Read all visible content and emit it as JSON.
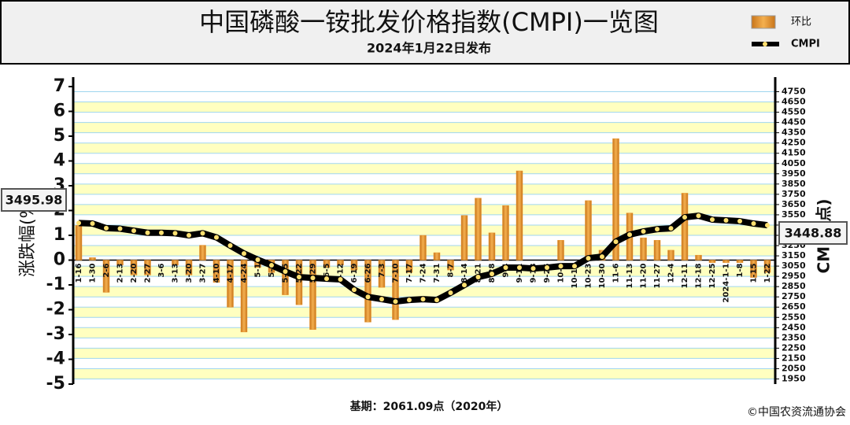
{
  "chart_data": {
    "type": "bar_line",
    "title": "中国磷酸一铵批发价格指数(CMPI)一览图",
    "subtitle": "2024年1月22日发布",
    "y_label": "涨跌幅(%)",
    "y2_label": "CMPI(点)",
    "footnote": "基期：2061.09点（2020年）",
    "credit": "©中国农资流通协会",
    "annotations": [
      "3495.98",
      "3448.88"
    ],
    "categories": [
      "1-16",
      "1-30",
      "2-6",
      "2-13",
      "2-20",
      "2-27",
      "3-6",
      "3-13",
      "3-20",
      "3-27",
      "4-10",
      "4-17",
      "4-24",
      "5-1",
      "5-8",
      "5-15",
      "5-22",
      "5-29",
      "6-5",
      "6-12",
      "6-19",
      "6-26",
      "7-3",
      "7-10",
      "7-17",
      "7-24",
      "7-31",
      "8-7",
      "8-14",
      "8-21",
      "8-28",
      "9-4",
      "9-11",
      "9-18",
      "9-25",
      "10-9",
      "10-16",
      "10-23",
      "10-30",
      "11-6",
      "11-13",
      "11-20",
      "11-27",
      "12-4",
      "12-11",
      "12-18",
      "12-25",
      "2024-1-1",
      "1-8",
      "1-15",
      "1-22"
    ],
    "series": [
      {
        "name": "环比",
        "color": "#e8932a",
        "values": [
          1.4,
          0.1,
          -1.3,
          -0.2,
          -0.6,
          -0.6,
          0,
          -0.2,
          -0.6,
          0.6,
          -0.9,
          -1.9,
          -2.9,
          -0.3,
          -0.5,
          -1.4,
          -1.8,
          -2.8,
          -0.3,
          -0.2,
          -0.4,
          -2.5,
          -1.1,
          -2.4,
          -0.5,
          1.0,
          0.3,
          -0.4,
          1.8,
          2.5,
          1.1,
          2.2,
          3.6,
          0,
          0,
          0.8,
          0,
          2.4,
          0.4,
          4.9,
          1.9,
          0.9,
          0.8,
          0.4,
          2.7,
          0.2,
          -0.1,
          -0.1,
          -0.1,
          -0.7,
          -0.5
        ]
      },
      {
        "name": "CMPI",
        "color": "#000000",
        "axis": "y2",
        "values": [
          3470,
          3465,
          3420,
          3415,
          3395,
          3375,
          3375,
          3370,
          3350,
          3370,
          3330,
          3250,
          3173,
          3112,
          3058,
          2997,
          2943,
          2935,
          2927,
          2920,
          2820,
          2750,
          2728,
          2705,
          2720,
          2728,
          2720,
          2790,
          2866,
          2943,
          2974,
          3035,
          3035,
          3027,
          3035,
          3050,
          3050,
          3127,
          3142,
          3288,
          3357,
          3388,
          3410,
          3418,
          3526,
          3541,
          3503,
          3495.98,
          3488,
          3465,
          3448.88
        ]
      }
    ],
    "ylim": [
      -5,
      7
    ],
    "yticks": [
      -5,
      -4,
      -3,
      -2,
      -1,
      0,
      1,
      2,
      3,
      4,
      5,
      6,
      7
    ],
    "y2lim": [
      1900,
      4800
    ],
    "y2ticks": [
      1950,
      2050,
      2150,
      2250,
      2350,
      2450,
      2550,
      2650,
      2750,
      2850,
      2950,
      3050,
      3150,
      3250,
      3350,
      3450,
      3550,
      3650,
      3750,
      3850,
      3950,
      4050,
      4150,
      4250,
      4350,
      4450,
      4550,
      4650,
      4750
    ],
    "grid": true
  }
}
